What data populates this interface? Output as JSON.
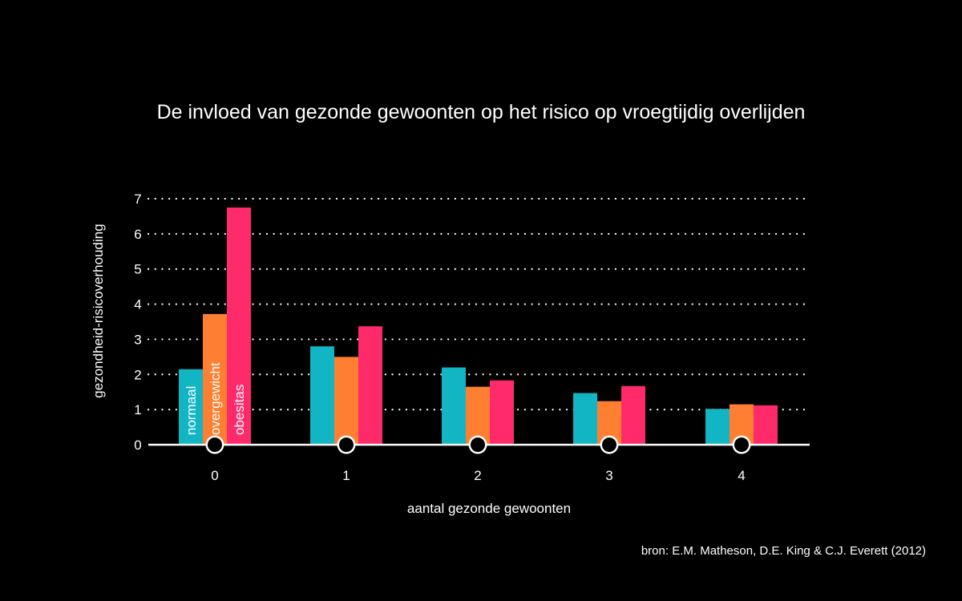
{
  "chart_data": {
    "type": "bar",
    "title": "De invloed van gezonde gewoonten op het risico op vroegtijdig overlijden",
    "xlabel": "aantal gezonde gewoonten",
    "ylabel": "gezondheid-risicoverhouding",
    "categories": [
      "0",
      "1",
      "2",
      "3",
      "4"
    ],
    "series": [
      {
        "name": "normaal",
        "color": "#12B5C4",
        "values": [
          2.15,
          2.8,
          2.2,
          1.47,
          1.02
        ]
      },
      {
        "name": "overgewicht",
        "color": "#FF7F32",
        "values": [
          3.72,
          2.5,
          1.65,
          1.24,
          1.15
        ]
      },
      {
        "name": "obesitas",
        "color": "#FF2A6A",
        "values": [
          6.75,
          3.37,
          1.83,
          1.67,
          1.12
        ]
      }
    ],
    "ylim": [
      0,
      7
    ],
    "yticks": [
      "0",
      "1",
      "2",
      "3",
      "4",
      "5",
      "6",
      "7"
    ],
    "grid": true,
    "legend": "labels inside first group bars"
  },
  "source": "bron: E.M. Matheson, D.E. King & C.J. Everett (2012)"
}
